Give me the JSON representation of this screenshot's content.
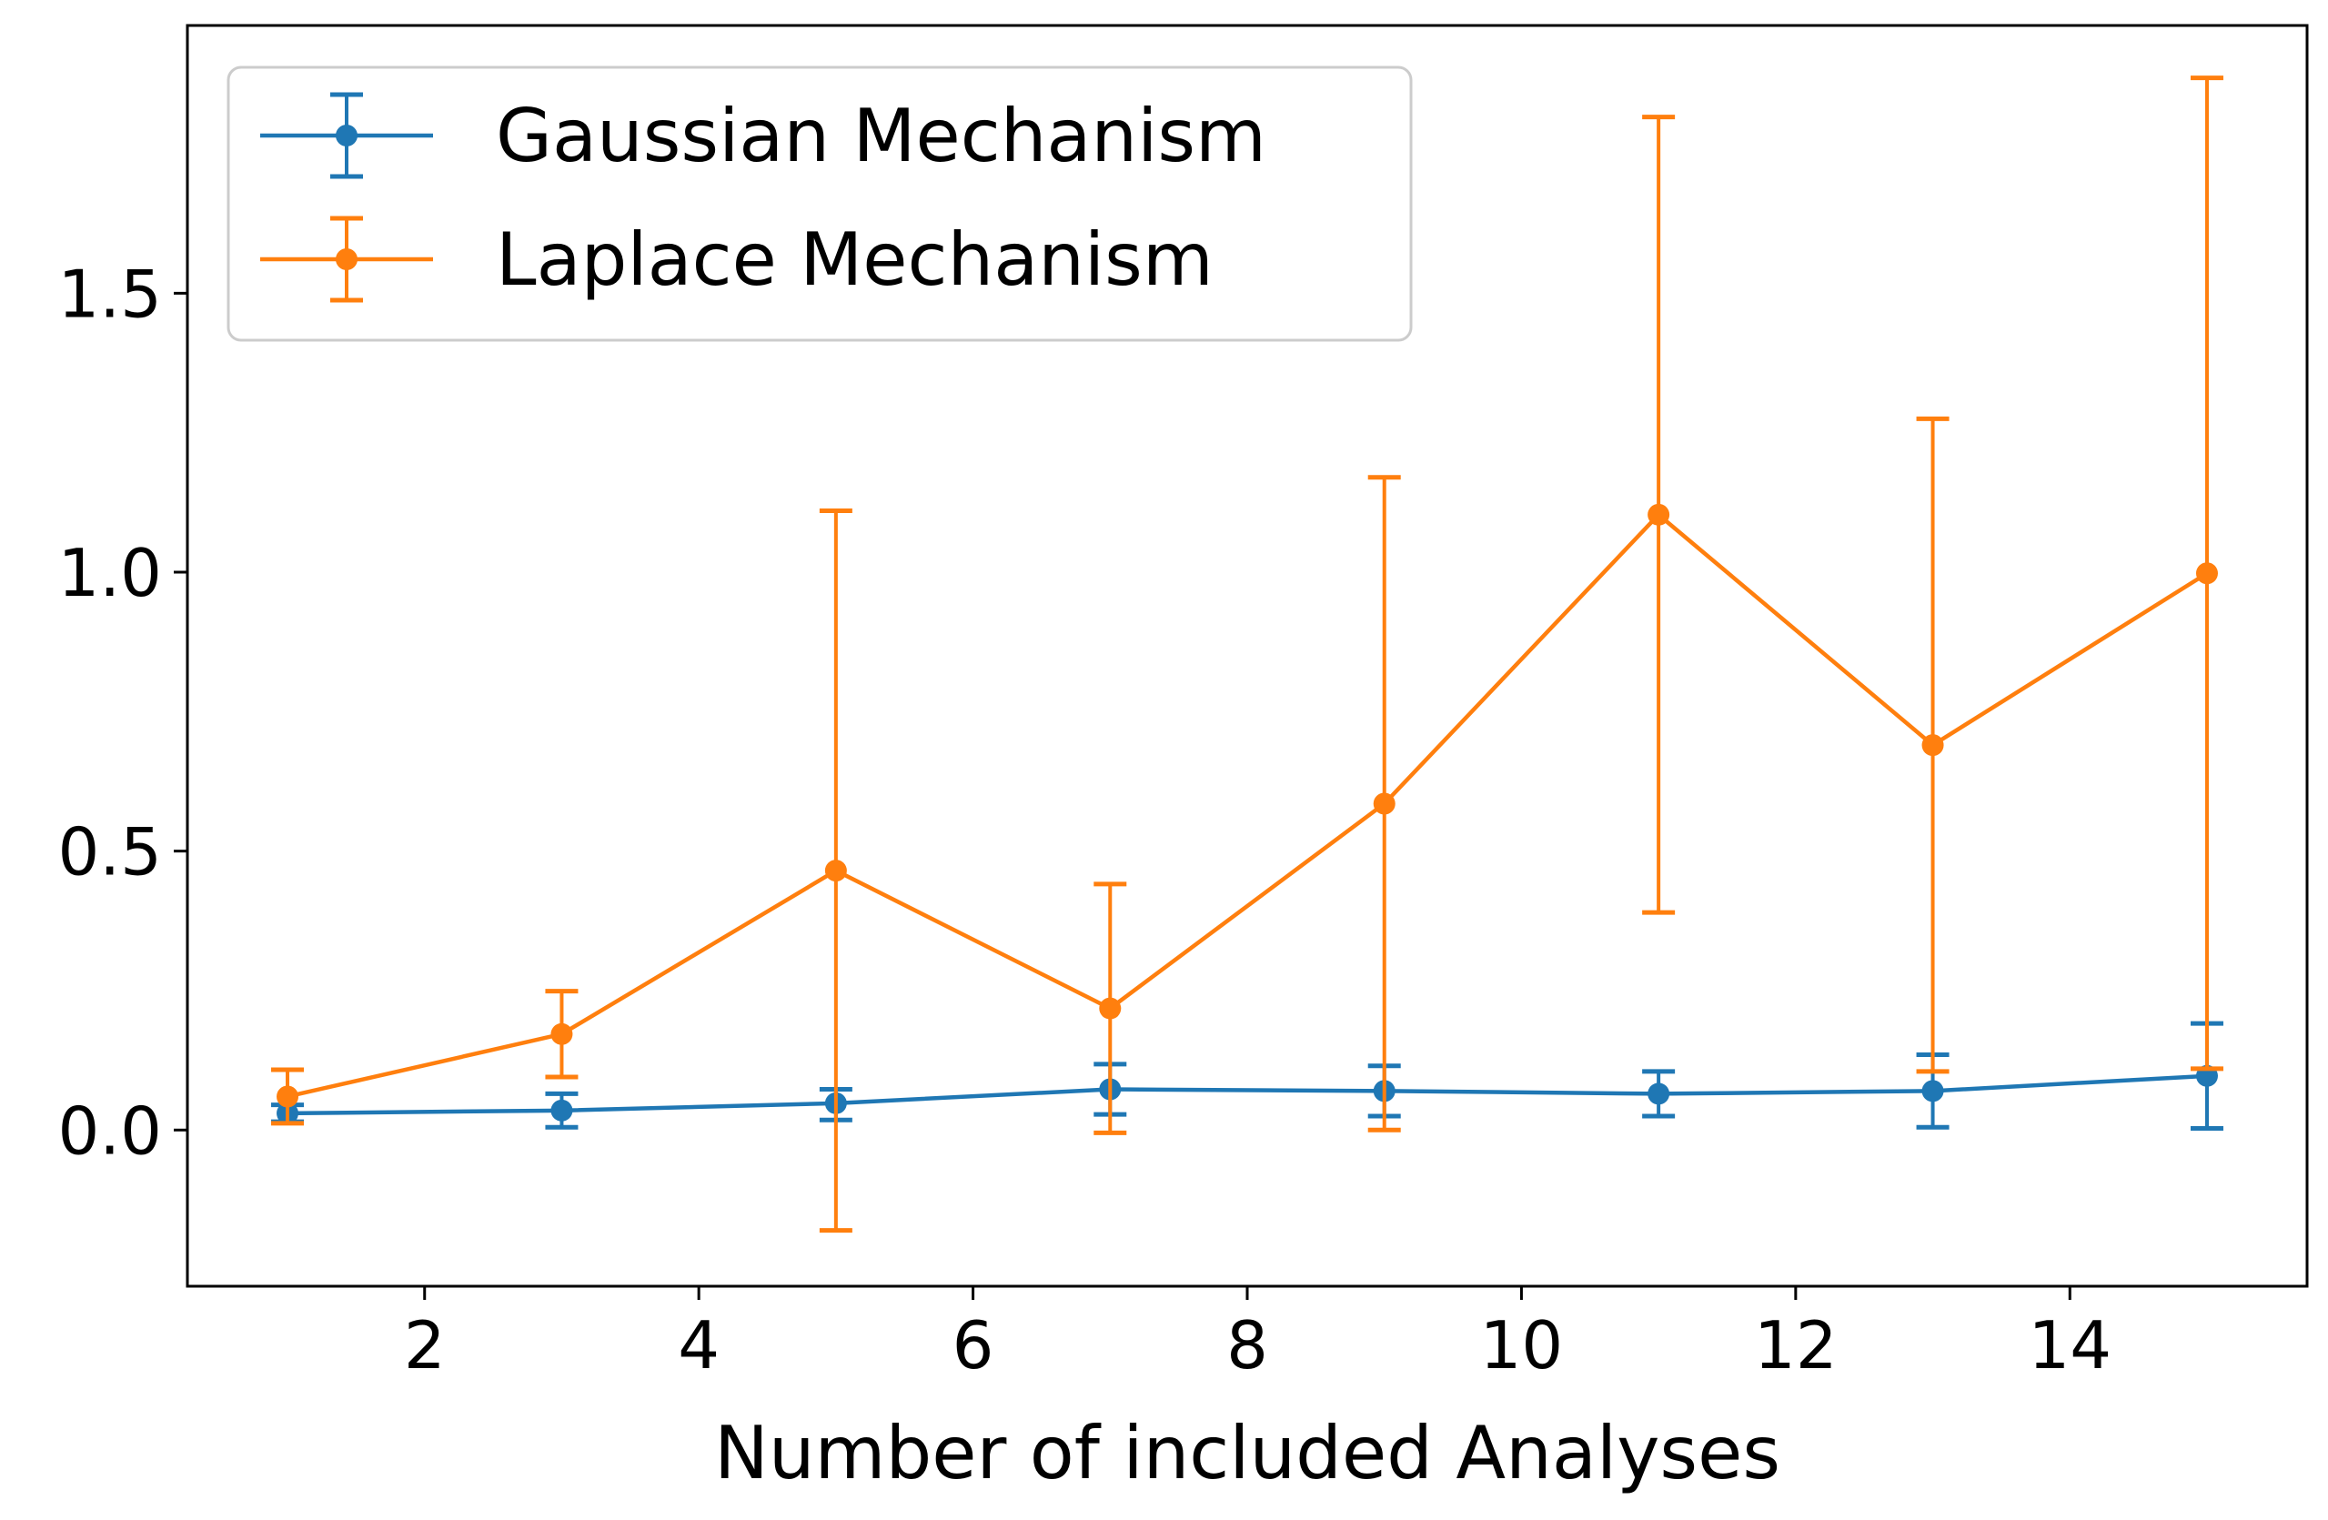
{
  "chart_data": {
    "type": "line",
    "title": "",
    "xlabel": "Number of included Analyses",
    "ylabel": "",
    "xlim": [
      0.27,
      15.73
    ],
    "ylim": [
      -0.28,
      1.98
    ],
    "xticks": [
      2,
      4,
      6,
      8,
      10,
      12,
      14
    ],
    "yticks": [
      0.0,
      0.5,
      1.0,
      1.5
    ],
    "xtick_labels": [
      "2",
      "4",
      "6",
      "8",
      "10",
      "12",
      "14"
    ],
    "ytick_labels": [
      "0.0",
      "0.5",
      "1.0",
      "1.5"
    ],
    "grid": false,
    "legend_position": "top-left",
    "series": [
      {
        "name": "Gaussian Mechanism",
        "color": "#1f77b4",
        "x": [
          1,
          3,
          5,
          7,
          9,
          11,
          13,
          15
        ],
        "y": [
          0.03,
          0.035,
          0.048,
          0.073,
          0.07,
          0.065,
          0.07,
          0.097
        ],
        "err_low": [
          0.015,
          0.03,
          0.03,
          0.045,
          0.045,
          0.04,
          0.065,
          0.094
        ],
        "err_high": [
          0.015,
          0.03,
          0.025,
          0.045,
          0.045,
          0.04,
          0.065,
          0.094
        ]
      },
      {
        "name": "Laplace Mechanism",
        "color": "#ff7f0e",
        "x": [
          1,
          3,
          5,
          7,
          9,
          11,
          13,
          15
        ],
        "y": [
          0.06,
          0.172,
          0.465,
          0.218,
          0.585,
          1.103,
          0.69,
          0.998
        ],
        "err_low": [
          0.048,
          0.077,
          0.645,
          0.223,
          0.585,
          0.713,
          0.585,
          0.888
        ],
        "err_high": [
          0.048,
          0.077,
          0.645,
          0.223,
          0.585,
          0.713,
          0.585,
          0.888
        ]
      }
    ]
  }
}
